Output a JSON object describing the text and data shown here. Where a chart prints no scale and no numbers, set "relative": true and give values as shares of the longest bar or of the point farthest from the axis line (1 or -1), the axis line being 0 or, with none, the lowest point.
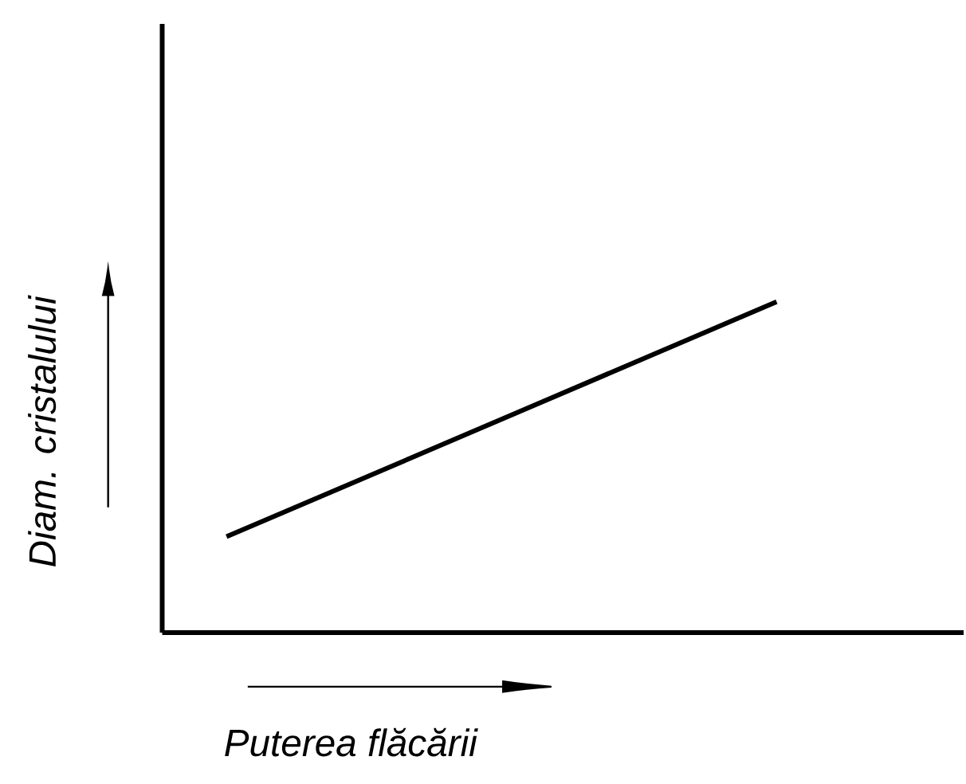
{
  "chart_data": {
    "type": "line",
    "xlabel": "Puterea flăcării",
    "ylabel": "Diam. cristalului",
    "categories": [
      null,
      null
    ],
    "values": [
      0.29,
      1
    ],
    "color": "#000000",
    "relative": true
  }
}
